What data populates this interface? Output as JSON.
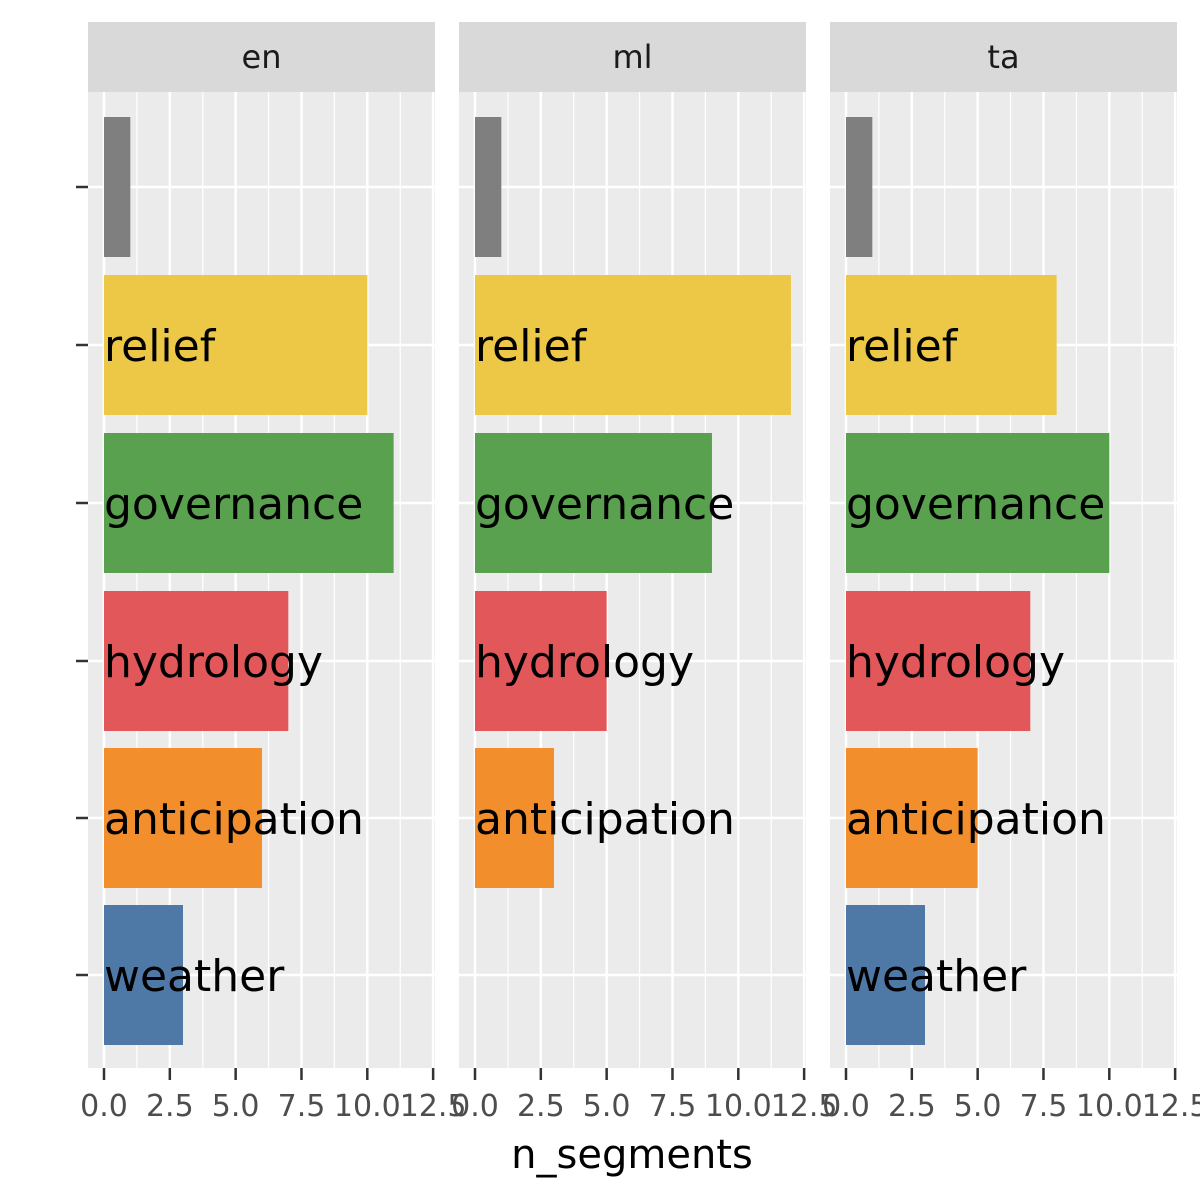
{
  "chart_data": {
    "type": "bar",
    "orientation": "horizontal",
    "faceted": true,
    "xlabel": "n_segments",
    "ylabel": "",
    "xlim": [
      0,
      12.5
    ],
    "x_ticks": [
      "0.0",
      "2.5",
      "5.0",
      "7.5",
      "10.0",
      "12.5"
    ],
    "grid": true,
    "categories": [
      "",
      "relief",
      "governance",
      "hydrology",
      "anticipation",
      "weather"
    ],
    "category_colors": {
      "": "#7f7f7f",
      "relief": "#ecc846",
      "governance": "#59a14f",
      "hydrology": "#e1575a",
      "anticipation": "#f28e2c",
      "weather": "#4e79a7"
    },
    "panels": [
      {
        "name": "en",
        "values": [
          1,
          10,
          11,
          7,
          6,
          3
        ]
      },
      {
        "name": "ml",
        "values": [
          1,
          12,
          9,
          5,
          3,
          null
        ]
      },
      {
        "name": "ta",
        "values": [
          1,
          8,
          10,
          7,
          5,
          3
        ]
      }
    ]
  }
}
